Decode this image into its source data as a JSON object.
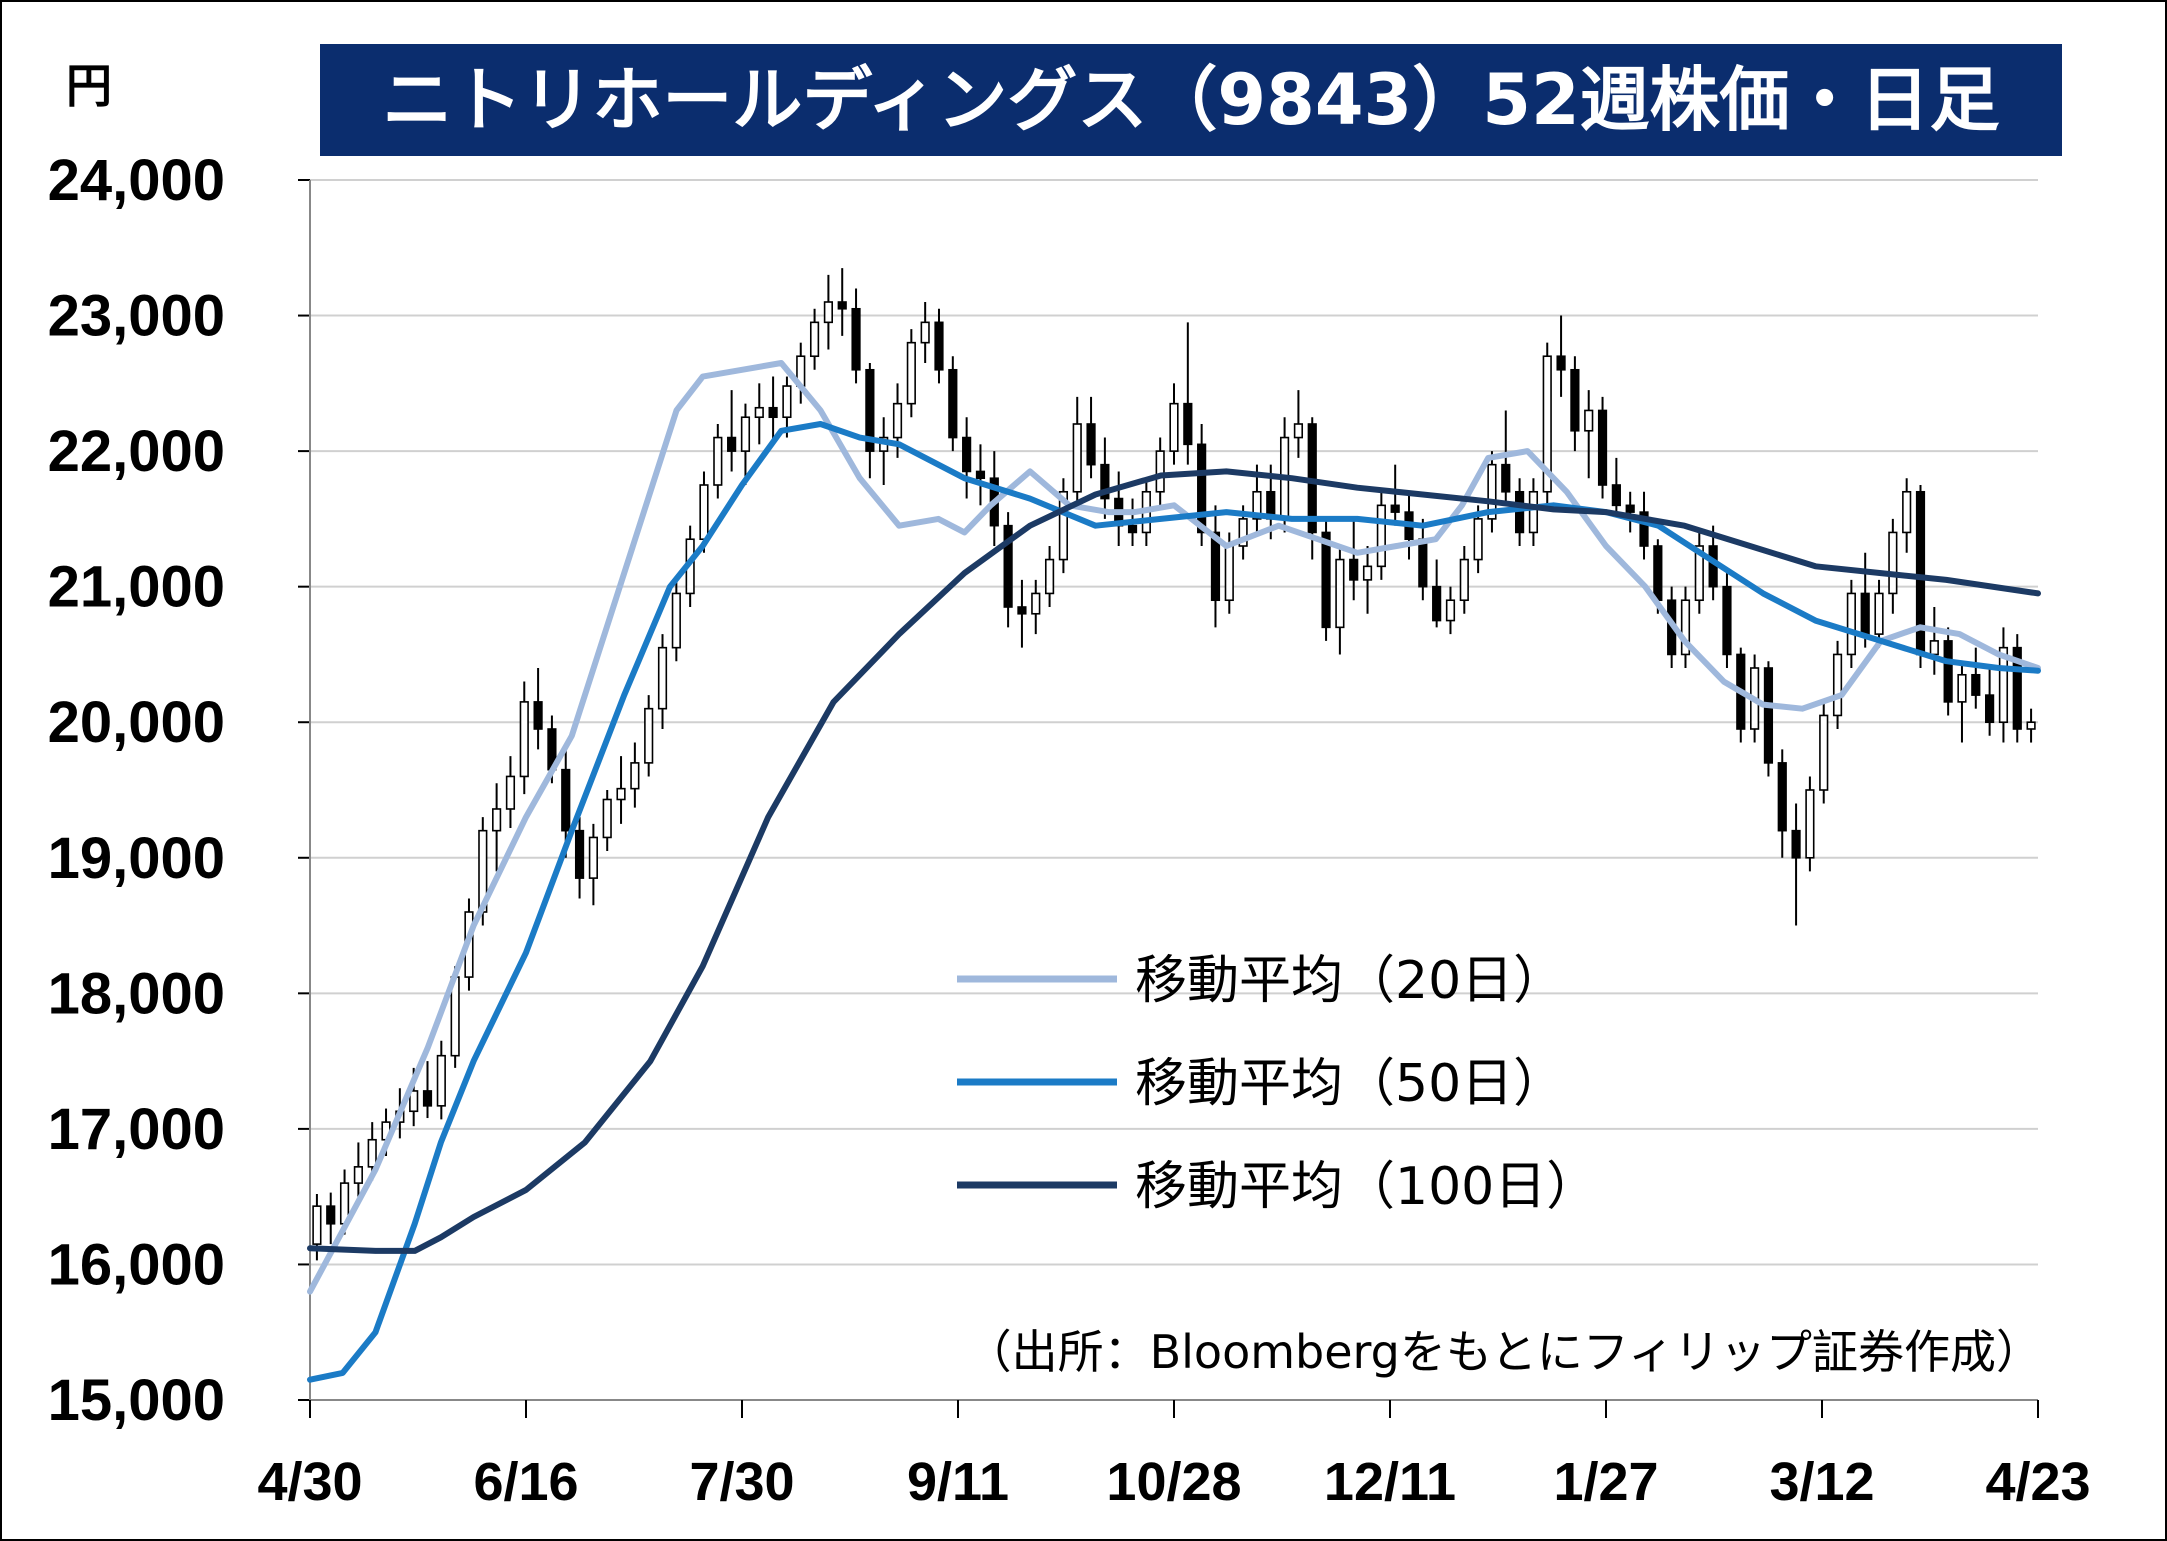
{
  "title": "ニトリホールディングス（9843）52週株価・日足",
  "unit_label": "円",
  "source_note": "（出所：Bloombergをもとにフィリップ証券作成）",
  "colors": {
    "title_bg": "#0b2d6e",
    "ma20": "#9fb8dc",
    "ma50": "#1b7bc6",
    "ma100": "#1c3a64",
    "candle": "#000000",
    "grid": "#d0d0d0"
  },
  "chart_data": {
    "type": "candlestick",
    "title": "ニトリホールディングス（9843）52週株価・日足",
    "ylabel": "円",
    "ylim": [
      15000,
      24000
    ],
    "y_ticks": [
      15000,
      16000,
      17000,
      18000,
      19000,
      20000,
      21000,
      22000,
      23000,
      24000
    ],
    "y_tick_labels": [
      "15,000",
      "16,000",
      "17,000",
      "18,000",
      "19,000",
      "20,000",
      "21,000",
      "22,000",
      "23,000",
      "24,000"
    ],
    "x_tick_labels": [
      "4/30",
      "6/16",
      "7/30",
      "9/11",
      "10/28",
      "12/11",
      "1/27",
      "3/12",
      "4/23"
    ],
    "x_tick_index": [
      0,
      33,
      66,
      99,
      132,
      165,
      198,
      231,
      264
    ],
    "grid": true,
    "legend_position": "center-right",
    "series": [
      {
        "name": "移動平均（20日）",
        "x_index": [
          0,
          10,
          18,
          25,
          33,
          40,
          48,
          56,
          60,
          66,
          72,
          78,
          84,
          90,
          96,
          100,
          104,
          110,
          116,
          122,
          126,
          132,
          140,
          148,
          154,
          160,
          166,
          172,
          176,
          180,
          186,
          192,
          198,
          204,
          210,
          216,
          222,
          228,
          234,
          240,
          246,
          252,
          258,
          264
        ],
        "values": [
          15800,
          16700,
          17600,
          18500,
          19300,
          19900,
          21100,
          22300,
          22550,
          22600,
          22650,
          22300,
          21800,
          21450,
          21500,
          21400,
          21600,
          21850,
          21600,
          21550,
          21550,
          21600,
          21300,
          21450,
          21350,
          21250,
          21300,
          21350,
          21600,
          21950,
          22000,
          21700,
          21300,
          21000,
          20600,
          20300,
          20130,
          20100,
          20200,
          20600,
          20700,
          20650,
          20500,
          20400
        ]
      },
      {
        "name": "移動平均（50日）",
        "x_index": [
          0,
          5,
          10,
          16,
          20,
          25,
          33,
          40,
          48,
          55,
          60,
          66,
          72,
          78,
          84,
          90,
          100,
          110,
          120,
          130,
          140,
          150,
          160,
          170,
          180,
          190,
          198,
          206,
          214,
          222,
          230,
          240,
          250,
          258,
          264
        ],
        "values": [
          15150,
          15200,
          15500,
          16300,
          16900,
          17500,
          18300,
          19200,
          20200,
          21000,
          21300,
          21750,
          22150,
          22200,
          22100,
          22050,
          21800,
          21650,
          21450,
          21500,
          21550,
          21500,
          21500,
          21450,
          21550,
          21600,
          21550,
          21450,
          21200,
          20950,
          20750,
          20600,
          20450,
          20400,
          20380
        ]
      },
      {
        "name": "移動平均（100日）",
        "x_index": [
          0,
          10,
          16,
          20,
          25,
          33,
          42,
          52,
          60,
          70,
          80,
          90,
          100,
          110,
          120,
          130,
          140,
          150,
          160,
          170,
          180,
          190,
          198,
          210,
          220,
          230,
          240,
          250,
          264
        ],
        "values": [
          16120,
          16100,
          16100,
          16200,
          16350,
          16550,
          16900,
          17500,
          18200,
          19300,
          20150,
          20650,
          21100,
          21450,
          21680,
          21820,
          21850,
          21800,
          21730,
          21680,
          21630,
          21570,
          21550,
          21450,
          21300,
          21150,
          21100,
          21050,
          20950
        ]
      }
    ],
    "candles_ohlc": [
      [
        16150,
        16520,
        16030,
        16430
      ],
      [
        16430,
        16530,
        16150,
        16300
      ],
      [
        16300,
        16700,
        16220,
        16600
      ],
      [
        16600,
        16900,
        16500,
        16720
      ],
      [
        16720,
        17050,
        16620,
        16920
      ],
      [
        16920,
        17150,
        16800,
        17050
      ],
      [
        17050,
        17300,
        16930,
        17130
      ],
      [
        17130,
        17450,
        17020,
        17280
      ],
      [
        17280,
        17500,
        17080,
        17170
      ],
      [
        17170,
        17650,
        17070,
        17540
      ],
      [
        17540,
        18200,
        17450,
        18120
      ],
      [
        18120,
        18700,
        18020,
        18600
      ],
      [
        18600,
        19300,
        18500,
        19200
      ],
      [
        19200,
        19550,
        18900,
        19360
      ],
      [
        19360,
        19750,
        19220,
        19600
      ],
      [
        19600,
        20300,
        19470,
        20150
      ],
      [
        20150,
        20400,
        19800,
        19950
      ],
      [
        19950,
        20050,
        19550,
        19650
      ],
      [
        19650,
        19800,
        19000,
        19200
      ],
      [
        19200,
        19300,
        18700,
        18850
      ],
      [
        18850,
        19250,
        18650,
        19150
      ],
      [
        19150,
        19500,
        19050,
        19430
      ],
      [
        19430,
        19750,
        19250,
        19510
      ],
      [
        19510,
        19850,
        19370,
        19700
      ],
      [
        19700,
        20200,
        19600,
        20100
      ],
      [
        20100,
        20650,
        19950,
        20550
      ],
      [
        20550,
        21050,
        20450,
        20950
      ],
      [
        20950,
        21450,
        20850,
        21350
      ],
      [
        21350,
        21850,
        21250,
        21750
      ],
      [
        21750,
        22200,
        21650,
        22100
      ],
      [
        22100,
        22450,
        21850,
        22000
      ],
      [
        22000,
        22350,
        21750,
        22250
      ],
      [
        22250,
        22500,
        22050,
        22320
      ],
      [
        22320,
        22550,
        22050,
        22250
      ],
      [
        22250,
        22550,
        22100,
        22480
      ],
      [
        22480,
        22800,
        22350,
        22700
      ],
      [
        22700,
        23050,
        22600,
        22950
      ],
      [
        22950,
        23300,
        22750,
        23100
      ],
      [
        23100,
        23350,
        22850,
        23050
      ],
      [
        23050,
        23200,
        22500,
        22600
      ],
      [
        22600,
        22650,
        21800,
        22000
      ],
      [
        22000,
        22250,
        21750,
        22100
      ],
      [
        22100,
        22500,
        21950,
        22350
      ],
      [
        22350,
        22900,
        22250,
        22800
      ],
      [
        22800,
        23100,
        22650,
        22950
      ],
      [
        22950,
        23050,
        22500,
        22600
      ],
      [
        22600,
        22700,
        22000,
        22100
      ],
      [
        22100,
        22250,
        21650,
        21850
      ],
      [
        21850,
        22050,
        21600,
        21800
      ],
      [
        21800,
        22000,
        21300,
        21450
      ],
      [
        21450,
        21550,
        20700,
        20850
      ],
      [
        20850,
        21050,
        20550,
        20800
      ],
      [
        20800,
        21050,
        20650,
        20950
      ],
      [
        20950,
        21300,
        20850,
        21200
      ],
      [
        21200,
        21800,
        21100,
        21700
      ],
      [
        21700,
        22400,
        21600,
        22200
      ],
      [
        22200,
        22400,
        21800,
        21900
      ],
      [
        21900,
        22100,
        21500,
        21650
      ],
      [
        21650,
        21850,
        21300,
        21450
      ],
      [
        21450,
        21650,
        21300,
        21400
      ],
      [
        21400,
        21800,
        21300,
        21700
      ],
      [
        21700,
        22100,
        21600,
        22000
      ],
      [
        22000,
        22500,
        21900,
        22350
      ],
      [
        22350,
        22950,
        21900,
        22050
      ],
      [
        22050,
        22200,
        21300,
        21400
      ],
      [
        21400,
        21600,
        20700,
        20900
      ],
      [
        20900,
        21400,
        20800,
        21300
      ],
      [
        21300,
        21600,
        21200,
        21500
      ],
      [
        21500,
        21900,
        21400,
        21700
      ],
      [
        21700,
        21900,
        21350,
        21500
      ],
      [
        21500,
        22250,
        21400,
        22100
      ],
      [
        22100,
        22450,
        21950,
        22200
      ],
      [
        22200,
        22250,
        21200,
        21400
      ],
      [
        21400,
        21500,
        20600,
        20700
      ],
      [
        20700,
        21300,
        20500,
        21200
      ],
      [
        21200,
        21500,
        20900,
        21050
      ],
      [
        21050,
        21300,
        20800,
        21150
      ],
      [
        21150,
        21700,
        21050,
        21600
      ],
      [
        21600,
        21900,
        21450,
        21550
      ],
      [
        21550,
        21700,
        21200,
        21350
      ],
      [
        21350,
        21500,
        20900,
        21000
      ],
      [
        21000,
        21200,
        20700,
        20750
      ],
      [
        20750,
        21000,
        20650,
        20900
      ],
      [
        20900,
        21300,
        20800,
        21200
      ],
      [
        21200,
        21600,
        21100,
        21500
      ],
      [
        21500,
        22000,
        21400,
        21900
      ],
      [
        21900,
        22300,
        21600,
        21700
      ],
      [
        21700,
        21800,
        21300,
        21400
      ],
      [
        21400,
        21800,
        21300,
        21700
      ],
      [
        21700,
        22800,
        21600,
        22700
      ],
      [
        22700,
        23000,
        22400,
        22600
      ],
      [
        22600,
        22700,
        22000,
        22150
      ],
      [
        22150,
        22450,
        21800,
        22300
      ],
      [
        22300,
        22400,
        21650,
        21750
      ],
      [
        21750,
        21950,
        21550,
        21600
      ],
      [
        21600,
        21700,
        21400,
        21550
      ],
      [
        21550,
        21700,
        21200,
        21300
      ],
      [
        21300,
        21350,
        20800,
        20900
      ],
      [
        20900,
        21000,
        20400,
        20500
      ],
      [
        20500,
        21000,
        20400,
        20900
      ],
      [
        20900,
        21400,
        20800,
        21300
      ],
      [
        21300,
        21450,
        20900,
        21000
      ],
      [
        21000,
        21100,
        20400,
        20500
      ],
      [
        20500,
        20550,
        19850,
        19950
      ],
      [
        19950,
        20500,
        19850,
        20400
      ],
      [
        20400,
        20450,
        19600,
        19700
      ],
      [
        19700,
        19800,
        19000,
        19200
      ],
      [
        19200,
        19400,
        18500,
        19000
      ],
      [
        19000,
        19600,
        18900,
        19500
      ],
      [
        19500,
        20150,
        19400,
        20050
      ],
      [
        20050,
        20600,
        19950,
        20500
      ],
      [
        20500,
        21050,
        20400,
        20950
      ],
      [
        20950,
        21250,
        20550,
        20650
      ],
      [
        20650,
        21050,
        20550,
        20950
      ],
      [
        20950,
        21500,
        20800,
        21400
      ],
      [
        21400,
        21800,
        21250,
        21700
      ],
      [
        21700,
        21750,
        20400,
        20500
      ],
      [
        20500,
        20850,
        20350,
        20600
      ],
      [
        20600,
        20700,
        20050,
        20150
      ],
      [
        20150,
        20450,
        19850,
        20350
      ],
      [
        20350,
        20550,
        20100,
        20200
      ],
      [
        20200,
        20400,
        19900,
        20000
      ],
      [
        20000,
        20700,
        19850,
        20550
      ],
      [
        20550,
        20650,
        19850,
        19950
      ],
      [
        19950,
        20100,
        19850,
        20000
      ]
    ]
  },
  "legend": [
    {
      "label": "移動平均（20日）"
    },
    {
      "label": "移動平均（50日）"
    },
    {
      "label": "移動平均（100日）"
    }
  ]
}
